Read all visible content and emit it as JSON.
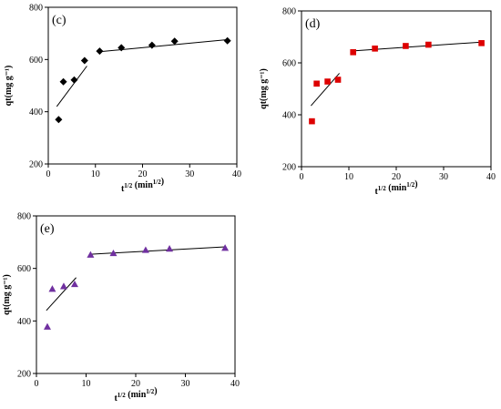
{
  "chart_data": [
    {
      "type": "scatter",
      "panel": "(c)",
      "xlabel": "t^1/2 (min^1/2)",
      "ylabel": "qt(mg g⁻¹)",
      "xlim": [
        0,
        40
      ],
      "ylim": [
        200,
        800
      ],
      "xticks": [
        "0",
        "10",
        "20",
        "30",
        "40"
      ],
      "yticks": [
        "200",
        "400",
        "600",
        "800"
      ],
      "marker": "diamond",
      "color": "#000000",
      "points": [
        [
          2.2,
          370
        ],
        [
          3.2,
          515
        ],
        [
          5.5,
          522
        ],
        [
          7.7,
          596
        ],
        [
          10.9,
          632
        ],
        [
          15.5,
          645
        ],
        [
          22,
          655
        ],
        [
          26.8,
          670
        ],
        [
          38,
          672
        ]
      ],
      "fit_lines": [
        {
          "x": [
            1.8,
            8.2
          ],
          "y": [
            420,
            575
          ]
        },
        {
          "x": [
            10.9,
            38
          ],
          "y": [
            630,
            676
          ]
        }
      ]
    },
    {
      "type": "scatter",
      "panel": "(d)",
      "xlabel": "t^1/2 (min^1/2)",
      "ylabel": "qt(mg g⁻¹)",
      "xlim": [
        0,
        40
      ],
      "ylim": [
        200,
        800
      ],
      "xticks": [
        "0",
        "10",
        "20",
        "30",
        "40"
      ],
      "yticks": [
        "200",
        "400",
        "600",
        "800"
      ],
      "marker": "square",
      "color": "#dd0000",
      "points": [
        [
          2.2,
          375
        ],
        [
          3.2,
          520
        ],
        [
          5.5,
          528
        ],
        [
          7.7,
          535
        ],
        [
          10.9,
          641
        ],
        [
          15.5,
          655
        ],
        [
          22,
          665
        ],
        [
          26.8,
          670
        ],
        [
          38,
          676
        ]
      ],
      "fit_lines": [
        {
          "x": [
            2,
            8
          ],
          "y": [
            435,
            560
          ]
        },
        {
          "x": [
            10.9,
            38
          ],
          "y": [
            646,
            680
          ]
        }
      ]
    },
    {
      "type": "scatter",
      "panel": "(e)",
      "xlabel": "t^1/2 (min^1/2)",
      "ylabel": "qt(mg g⁻¹)",
      "xlim": [
        0,
        40
      ],
      "ylim": [
        200,
        800
      ],
      "xticks": [
        "0",
        "10",
        "20",
        "30",
        "40"
      ],
      "yticks": [
        "200",
        "400",
        "600",
        "800"
      ],
      "marker": "triangle",
      "color": "#7030a0",
      "points": [
        [
          2.2,
          378
        ],
        [
          3.2,
          522
        ],
        [
          5.5,
          532
        ],
        [
          7.7,
          540
        ],
        [
          10.9,
          652
        ],
        [
          15.5,
          658
        ],
        [
          22,
          670
        ],
        [
          26.8,
          675
        ],
        [
          38,
          678
        ]
      ],
      "fit_lines": [
        {
          "x": [
            2,
            8
          ],
          "y": [
            440,
            565
          ]
        },
        {
          "x": [
            10.9,
            38
          ],
          "y": [
            654,
            682
          ]
        }
      ]
    }
  ]
}
